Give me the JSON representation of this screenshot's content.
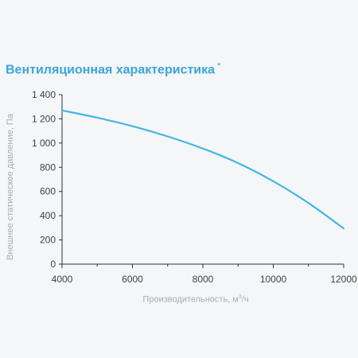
{
  "chart_data": {
    "type": "line",
    "title": "Вентиляционная характеристика",
    "title_mark": "*",
    "xlabel": "Производительность, м",
    "xlabel_sup": "3",
    "xlabel_suffix": "/ч",
    "ylabel": "Внешнее статическое давление, Па",
    "xlim": [
      4000,
      12000
    ],
    "ylim": [
      0,
      1400
    ],
    "xticks": [
      4000,
      6000,
      8000,
      10000,
      12000
    ],
    "xtick_labels": [
      "4000",
      "6000",
      "8000",
      "10000",
      "12000"
    ],
    "yticks": [
      0,
      200,
      400,
      600,
      800,
      1000,
      1200,
      1400
    ],
    "ytick_labels": [
      "0",
      "200",
      "400",
      "600",
      "800",
      "1 000",
      "1 200",
      "1 400"
    ],
    "grid": false,
    "line_color": "#45b6e3",
    "series": [
      {
        "x": [
          4000,
          5000,
          6000,
          7000,
          8000,
          9000,
          10000,
          11000,
          12000
        ],
        "values": [
          1270,
          1210,
          1140,
          1055,
          955,
          835,
          685,
          505,
          295
        ]
      }
    ]
  }
}
